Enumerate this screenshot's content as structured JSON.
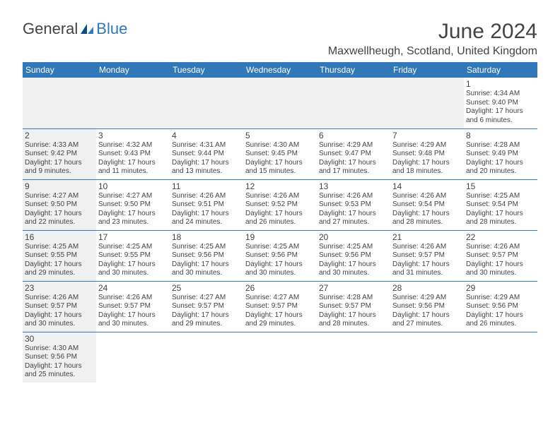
{
  "logo": {
    "text1": "General",
    "text2": "Blue",
    "color1": "#434343",
    "color2": "#3078b8"
  },
  "title": "June 2024",
  "location": "Maxwellheugh, Scotland, United Kingdom",
  "header_bg": "#3078b8",
  "days_of_week": [
    "Sunday",
    "Monday",
    "Tuesday",
    "Wednesday",
    "Thursday",
    "Friday",
    "Saturday"
  ],
  "cells": [
    [
      null,
      null,
      null,
      null,
      null,
      null,
      {
        "n": "1",
        "sr": "4:34 AM",
        "ss": "9:40 PM",
        "dl": "17 hours and 6 minutes."
      }
    ],
    [
      {
        "n": "2",
        "sr": "4:33 AM",
        "ss": "9:42 PM",
        "dl": "17 hours and 9 minutes."
      },
      {
        "n": "3",
        "sr": "4:32 AM",
        "ss": "9:43 PM",
        "dl": "17 hours and 11 minutes."
      },
      {
        "n": "4",
        "sr": "4:31 AM",
        "ss": "9:44 PM",
        "dl": "17 hours and 13 minutes."
      },
      {
        "n": "5",
        "sr": "4:30 AM",
        "ss": "9:45 PM",
        "dl": "17 hours and 15 minutes."
      },
      {
        "n": "6",
        "sr": "4:29 AM",
        "ss": "9:47 PM",
        "dl": "17 hours and 17 minutes."
      },
      {
        "n": "7",
        "sr": "4:29 AM",
        "ss": "9:48 PM",
        "dl": "17 hours and 18 minutes."
      },
      {
        "n": "8",
        "sr": "4:28 AM",
        "ss": "9:49 PM",
        "dl": "17 hours and 20 minutes."
      }
    ],
    [
      {
        "n": "9",
        "sr": "4:27 AM",
        "ss": "9:50 PM",
        "dl": "17 hours and 22 minutes."
      },
      {
        "n": "10",
        "sr": "4:27 AM",
        "ss": "9:50 PM",
        "dl": "17 hours and 23 minutes."
      },
      {
        "n": "11",
        "sr": "4:26 AM",
        "ss": "9:51 PM",
        "dl": "17 hours and 24 minutes."
      },
      {
        "n": "12",
        "sr": "4:26 AM",
        "ss": "9:52 PM",
        "dl": "17 hours and 26 minutes."
      },
      {
        "n": "13",
        "sr": "4:26 AM",
        "ss": "9:53 PM",
        "dl": "17 hours and 27 minutes."
      },
      {
        "n": "14",
        "sr": "4:26 AM",
        "ss": "9:54 PM",
        "dl": "17 hours and 28 minutes."
      },
      {
        "n": "15",
        "sr": "4:25 AM",
        "ss": "9:54 PM",
        "dl": "17 hours and 28 minutes."
      }
    ],
    [
      {
        "n": "16",
        "sr": "4:25 AM",
        "ss": "9:55 PM",
        "dl": "17 hours and 29 minutes."
      },
      {
        "n": "17",
        "sr": "4:25 AM",
        "ss": "9:55 PM",
        "dl": "17 hours and 30 minutes."
      },
      {
        "n": "18",
        "sr": "4:25 AM",
        "ss": "9:56 PM",
        "dl": "17 hours and 30 minutes."
      },
      {
        "n": "19",
        "sr": "4:25 AM",
        "ss": "9:56 PM",
        "dl": "17 hours and 30 minutes."
      },
      {
        "n": "20",
        "sr": "4:25 AM",
        "ss": "9:56 PM",
        "dl": "17 hours and 30 minutes."
      },
      {
        "n": "21",
        "sr": "4:26 AM",
        "ss": "9:57 PM",
        "dl": "17 hours and 31 minutes."
      },
      {
        "n": "22",
        "sr": "4:26 AM",
        "ss": "9:57 PM",
        "dl": "17 hours and 30 minutes."
      }
    ],
    [
      {
        "n": "23",
        "sr": "4:26 AM",
        "ss": "9:57 PM",
        "dl": "17 hours and 30 minutes."
      },
      {
        "n": "24",
        "sr": "4:26 AM",
        "ss": "9:57 PM",
        "dl": "17 hours and 30 minutes."
      },
      {
        "n": "25",
        "sr": "4:27 AM",
        "ss": "9:57 PM",
        "dl": "17 hours and 29 minutes."
      },
      {
        "n": "26",
        "sr": "4:27 AM",
        "ss": "9:57 PM",
        "dl": "17 hours and 29 minutes."
      },
      {
        "n": "27",
        "sr": "4:28 AM",
        "ss": "9:57 PM",
        "dl": "17 hours and 28 minutes."
      },
      {
        "n": "28",
        "sr": "4:29 AM",
        "ss": "9:56 PM",
        "dl": "17 hours and 27 minutes."
      },
      {
        "n": "29",
        "sr": "4:29 AM",
        "ss": "9:56 PM",
        "dl": "17 hours and 26 minutes."
      }
    ],
    [
      {
        "n": "30",
        "sr": "4:30 AM",
        "ss": "9:56 PM",
        "dl": "17 hours and 25 minutes."
      },
      null,
      null,
      null,
      null,
      null,
      null
    ]
  ],
  "labels": {
    "sunrise": "Sunrise:",
    "sunset": "Sunset:",
    "daylight": "Daylight:"
  }
}
